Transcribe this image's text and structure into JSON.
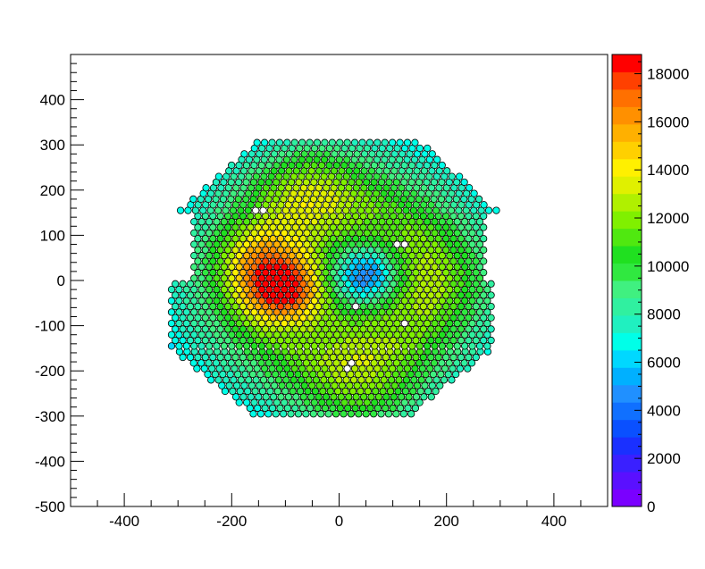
{
  "chart_data": {
    "type": "heatmap",
    "title": "",
    "xlabel": "",
    "ylabel": "",
    "xlim": [
      -500,
      500
    ],
    "ylim": [
      -500,
      500
    ],
    "x_ticks": [
      -400,
      -200,
      0,
      200,
      400
    ],
    "x_tick_labels": [
      "-400",
      "-200",
      "0",
      "200",
      "400"
    ],
    "y_ticks": [
      -500,
      -400,
      -300,
      -200,
      -100,
      0,
      100,
      200,
      300,
      400
    ],
    "y_tick_labels": [
      "-500",
      "-400",
      "-300",
      "-200",
      "-100",
      "0",
      "100",
      "200",
      "300",
      "400"
    ],
    "grid": false,
    "colorbar": {
      "min": 0,
      "max": 18800,
      "ticks": [
        0,
        2000,
        4000,
        6000,
        8000,
        10000,
        12000,
        14000,
        16000,
        18000
      ],
      "tick_labels": [
        "0",
        "2000",
        "4000",
        "6000",
        "8000",
        "10000",
        "12000",
        "14000",
        "16000",
        "18000"
      ],
      "colors": [
        "#7a00ff",
        "#5a10ff",
        "#3a20ff",
        "#1a30ff",
        "#0a50ff",
        "#1070ff",
        "#2090ff",
        "#00b0ff",
        "#00d8ff",
        "#00ffe8",
        "#20f0c0",
        "#30f0a0",
        "#40f080",
        "#30e840",
        "#20e020",
        "#50e810",
        "#80f000",
        "#b0f000",
        "#e0f000",
        "#fff000",
        "#ffd000",
        "#ffb000",
        "#ff9000",
        "#ff7000",
        "#ff4000",
        "#ff0000"
      ]
    },
    "cells": {
      "shape": "circle",
      "pitch": 14,
      "row_spacing": 12.5,
      "radius": 6.2,
      "footprint_y_range": [
        -295,
        305
      ],
      "footprint_half_width": 300,
      "empty_cells": [
        [
          -148,
          158
        ],
        [
          116,
          78
        ],
        [
          36,
          -62
        ],
        [
          120,
          -92
        ],
        [
          18,
          -188
        ]
      ],
      "hot_spots": [
        {
          "x": -105,
          "y": -25,
          "value": 18200,
          "sigma": 48
        },
        {
          "x": -140,
          "y": 40,
          "value": 15500,
          "sigma": 55
        },
        {
          "x": -60,
          "y": 200,
          "value": 14000,
          "sigma": 70
        },
        {
          "x": 40,
          "y": -235,
          "value": 13800,
          "sigma": 80
        },
        {
          "x": 150,
          "y": 0,
          "value": 13000,
          "sigma": 80
        }
      ],
      "cold_spots": [
        {
          "x": 50,
          "y": 10,
          "value": 3500,
          "sigma": 45
        }
      ],
      "base_value": 11000
    }
  }
}
